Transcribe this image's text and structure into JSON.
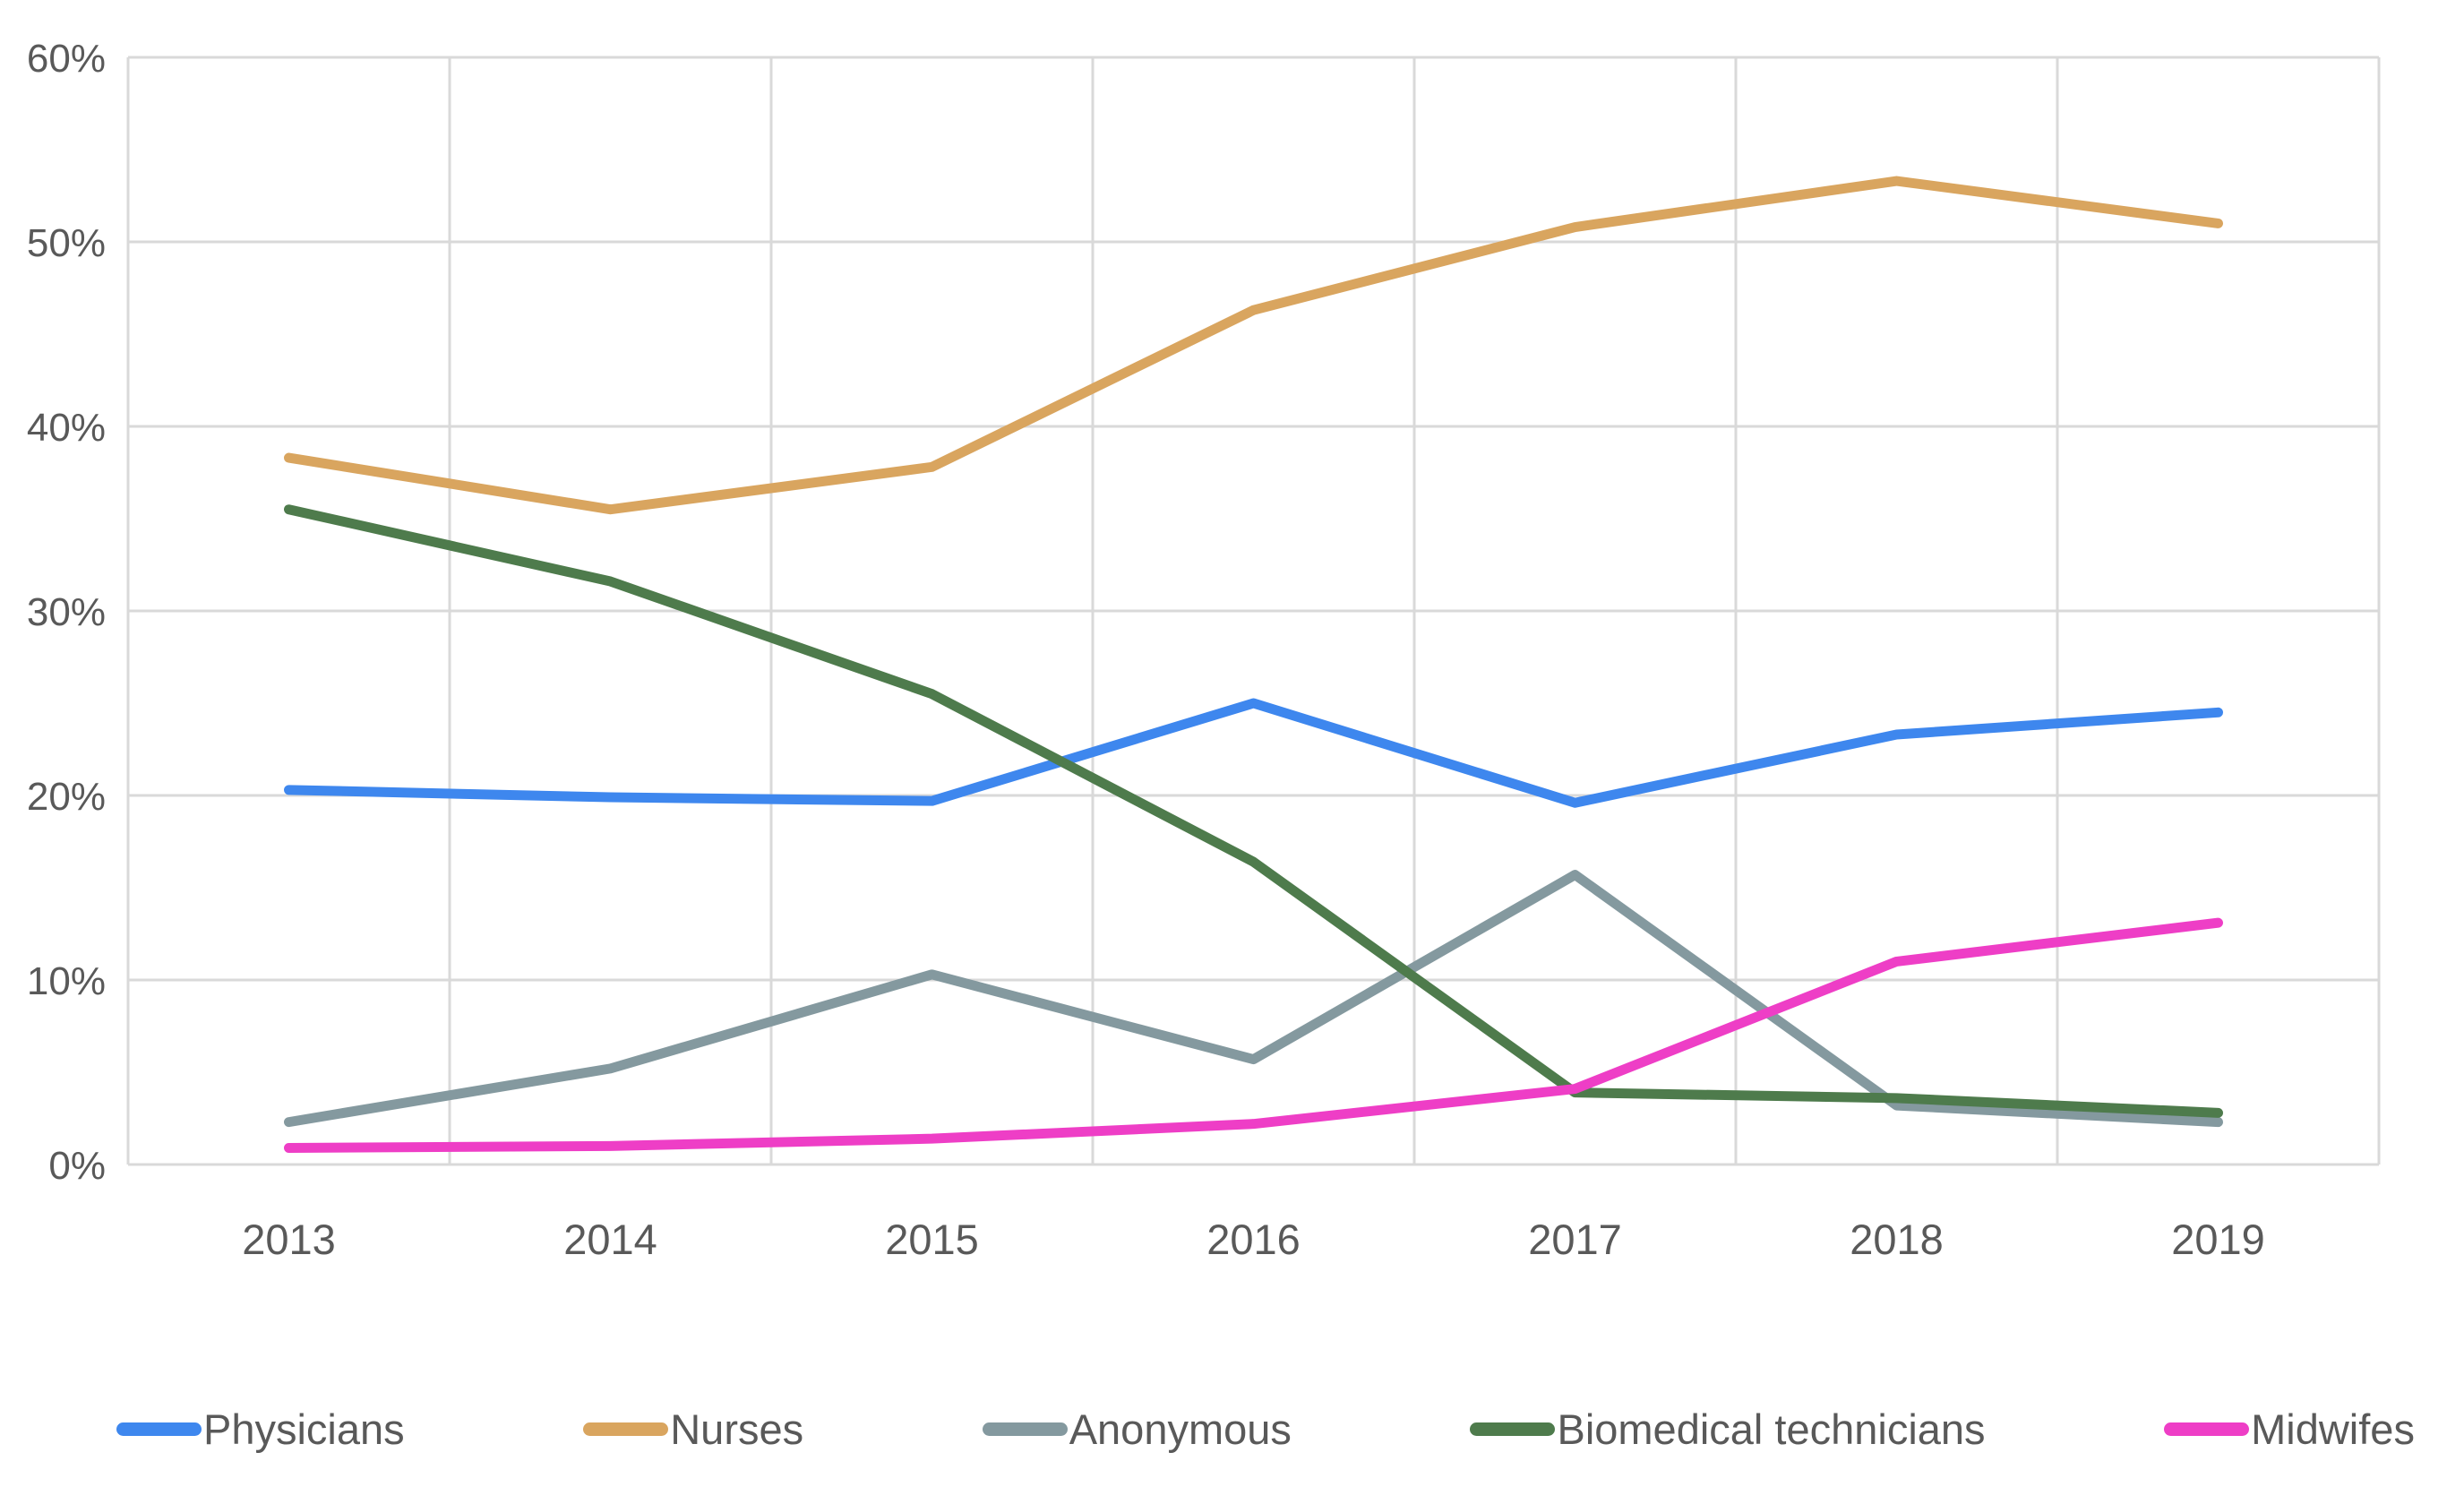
{
  "chart_data": {
    "type": "line",
    "title": "",
    "categories": [
      "2013",
      "2014",
      "2015",
      "2016",
      "2017",
      "2018",
      "2019"
    ],
    "series": [
      {
        "name": "Physicians",
        "color": "#3e87ee",
        "values": [
          20.3,
          19.9,
          19.7,
          25.0,
          19.6,
          23.3,
          24.5
        ]
      },
      {
        "name": "Nurses",
        "color": "#d9a55f",
        "values": [
          38.3,
          35.5,
          37.8,
          46.3,
          50.8,
          53.3,
          51.0
        ]
      },
      {
        "name": "Anonymous",
        "color": "#84999f",
        "values": [
          2.3,
          5.2,
          10.3,
          5.7,
          15.7,
          3.2,
          2.3
        ]
      },
      {
        "name": "Biomedical technicians",
        "color": "#4e7b4c",
        "values": [
          35.5,
          31.6,
          25.5,
          16.4,
          3.9,
          3.6,
          2.8
        ]
      },
      {
        "name": "Midwifes",
        "color": "#ee3ec6",
        "values": [
          0.9,
          1.0,
          1.4,
          2.2,
          4.1,
          11.0,
          13.1
        ]
      }
    ],
    "xlabel": "",
    "ylabel": "",
    "y_axis": {
      "min": 0,
      "max": 60,
      "step": 10,
      "tick_labels": [
        "0%",
        "10%",
        "20%",
        "30%",
        "40%",
        "50%",
        "60%"
      ]
    },
    "grid": {
      "horizontal": true,
      "vertical": true,
      "color": "#d9d9d9"
    },
    "legend_position": "bottom",
    "text_color": "#595959",
    "background_color": "#ffffff"
  }
}
